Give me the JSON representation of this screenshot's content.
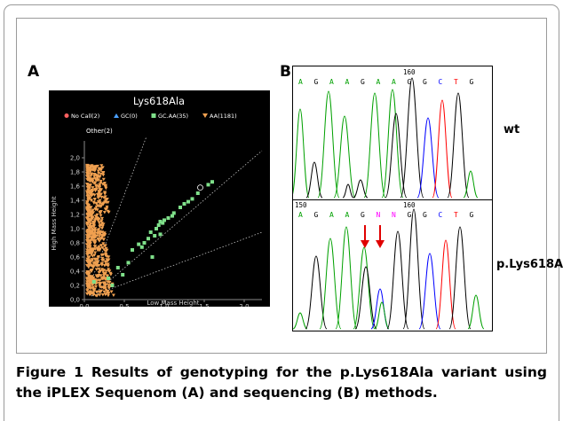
{
  "panel_a": {
    "letter": "A",
    "plot_title": "Lys618Ala",
    "legend": [
      {
        "label": "No Call(2)",
        "color": "#ff6060",
        "shape": "circle"
      },
      {
        "label": "GC(0)",
        "color": "#4aa0ff",
        "shape": "triangle"
      },
      {
        "label": "GC.AA(35)",
        "color": "#7fe08a",
        "shape": "square"
      },
      {
        "label": "AA(1181)",
        "color": "#f0a050",
        "shape": "triangle-down"
      }
    ],
    "other_label": "Other(2)",
    "ylabel": "High Mass Height",
    "xlabel": "Low Mass Height",
    "y_ticks": [
      "0,0",
      "0,2",
      "0,4",
      "0,6",
      "0,8",
      "1,0",
      "1,2",
      "1,4",
      "1,6",
      "1,8",
      "2,0"
    ],
    "x_ticks": [
      "0,0",
      "0,5",
      "1,0",
      "1,5",
      "2,0"
    ]
  },
  "panel_b": {
    "letter": "B",
    "top": {
      "bases": [
        "A",
        "G",
        "A",
        "A",
        "G",
        "A",
        "A",
        "G",
        "G",
        "C",
        "T",
        "G"
      ],
      "position_label": "160",
      "side_label": "wt"
    },
    "bottom": {
      "bases": [
        "A",
        "G",
        "A",
        "A",
        "G",
        "N",
        "N",
        "G",
        "G",
        "C",
        "T",
        "G"
      ],
      "left_label": "150",
      "position_label": "160",
      "side_label": "p.Lys618Ala"
    }
  },
  "caption": {
    "figure_number": "Figure 1",
    "text": "Results of genotyping for the p.Lys618Ala variant using the iPLEX Sequenom (A) and sequencing (B) methods."
  },
  "colors": {
    "A": "#00a000",
    "G": "#000000",
    "C": "#0000ff",
    "T": "#ff0000",
    "N": "#ff00ff",
    "arrow": "#e00000"
  }
}
